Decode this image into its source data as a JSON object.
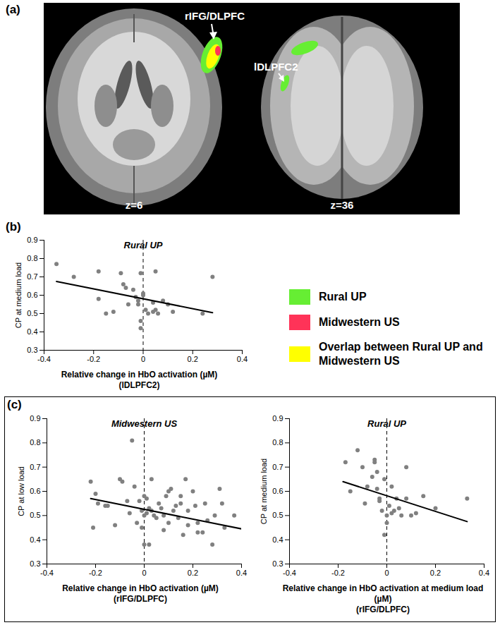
{
  "panel_labels": [
    "(a)",
    "(b)",
    "(c)"
  ],
  "panel_a": {
    "slices": [
      {
        "z_label": "z=6",
        "region_label": "rIFG/DLPFC"
      },
      {
        "z_label": "z=36",
        "region_label": "lDLPFC2"
      }
    ]
  },
  "legend": [
    {
      "name": "Rural UP",
      "color": "#66ee33"
    },
    {
      "name": "Midwestern US",
      "color": "#ff3358"
    },
    {
      "name": "Overlap between Rural UP and Midwestern US",
      "color": "#ffff00"
    }
  ],
  "chart_data": [
    {
      "type": "scatter",
      "title": "Rural UP",
      "xlabel": "Relative change in HbO activation (µM)",
      "xlabel_note": "(lDLPFC2)",
      "ylabel": "CP at medium load",
      "xlim": [
        -0.4,
        0.4
      ],
      "xticks": [
        -0.4,
        -0.2,
        0,
        0.2,
        0.4
      ],
      "ylim": [
        0.3,
        0.9
      ],
      "yticks": [
        0.3,
        0.4,
        0.5,
        0.6,
        0.7,
        0.8,
        0.9
      ],
      "vline": 0,
      "series": [
        {
          "type": "scatter",
          "color": "#808080",
          "marker": "circle",
          "x": [
            -0.35,
            -0.28,
            -0.18,
            -0.18,
            -0.15,
            -0.12,
            -0.09,
            -0.08,
            -0.07,
            -0.06,
            -0.04,
            -0.03,
            -0.02,
            -0.02,
            -0.01,
            -0.01,
            -0.01,
            0.0,
            0.0,
            0.01,
            0.02,
            0.04,
            0.04,
            0.05,
            0.05,
            0.06,
            0.08,
            0.1,
            0.12,
            0.24,
            0.28
          ],
          "values": [
            0.77,
            0.7,
            0.73,
            0.58,
            0.5,
            0.51,
            0.72,
            0.66,
            0.64,
            0.55,
            0.63,
            0.59,
            0.57,
            0.55,
            0.72,
            0.42,
            0.46,
            0.61,
            0.6,
            0.52,
            0.5,
            0.56,
            0.51,
            0.52,
            0.73,
            0.5,
            0.57,
            0.55,
            0.51,
            0.5,
            0.7
          ]
        },
        {
          "type": "line",
          "color": "#000000",
          "line_style": "solid",
          "x": [
            -0.35,
            0.28
          ],
          "values": [
            0.675,
            0.505
          ]
        }
      ]
    },
    {
      "type": "scatter",
      "title": "Midwestern US",
      "xlabel": "Relative change in HbO activation (µM)",
      "xlabel_note": "(rIFG/DLPFC)",
      "ylabel": "CP at low load",
      "xlim": [
        -0.4,
        0.4
      ],
      "xticks": [
        -0.4,
        -0.2,
        0,
        0.2,
        0.4
      ],
      "ylim": [
        0.3,
        0.9
      ],
      "yticks": [
        0.3,
        0.4,
        0.5,
        0.6,
        0.7,
        0.8,
        0.9
      ],
      "vline": 0,
      "series": [
        {
          "type": "scatter",
          "color": "#808080",
          "marker": "circle",
          "x": [
            -0.22,
            -0.21,
            -0.2,
            -0.19,
            -0.16,
            -0.15,
            -0.12,
            -0.1,
            -0.09,
            -0.07,
            -0.06,
            -0.05,
            -0.04,
            -0.03,
            -0.02,
            -0.01,
            -0.01,
            0.0,
            0.0,
            0.0,
            0.01,
            0.01,
            0.02,
            0.02,
            0.03,
            0.03,
            0.04,
            0.05,
            0.06,
            0.07,
            0.08,
            0.08,
            0.09,
            0.1,
            0.1,
            0.11,
            0.12,
            0.13,
            0.14,
            0.15,
            0.15,
            0.16,
            0.17,
            0.18,
            0.18,
            0.2,
            0.21,
            0.22,
            0.22,
            0.24,
            0.25,
            0.26,
            0.28,
            0.29,
            0.31,
            0.32,
            0.33,
            0.37
          ],
          "values": [
            0.64,
            0.45,
            0.59,
            0.55,
            0.54,
            0.54,
            0.46,
            0.65,
            0.64,
            0.56,
            0.51,
            0.81,
            0.62,
            0.47,
            0.56,
            0.52,
            0.45,
            0.58,
            0.5,
            0.38,
            0.57,
            0.51,
            0.53,
            0.38,
            0.65,
            0.52,
            0.5,
            0.49,
            0.55,
            0.53,
            0.5,
            0.44,
            0.58,
            0.6,
            0.47,
            0.61,
            0.52,
            0.54,
            0.49,
            0.58,
            0.55,
            0.42,
            0.65,
            0.52,
            0.46,
            0.6,
            0.54,
            0.47,
            0.43,
            0.43,
            0.55,
            0.48,
            0.38,
            0.5,
            0.61,
            0.55,
            0.45,
            0.5
          ]
        },
        {
          "type": "line",
          "color": "#000000",
          "line_style": "solid",
          "x": [
            -0.22,
            0.4
          ],
          "values": [
            0.57,
            0.445
          ]
        }
      ]
    },
    {
      "type": "scatter",
      "title": "Rural UP",
      "xlabel": "Relative change in HbO activation at medium load (µM)",
      "xlabel_note": "(rIFG/DLPFC)",
      "ylabel": "CP at medium load",
      "xlim": [
        -0.4,
        0.4
      ],
      "xticks": [
        -0.4,
        -0.2,
        0,
        0.2,
        0.4
      ],
      "ylim": [
        0.3,
        0.9
      ],
      "yticks": [
        0.3,
        0.4,
        0.5,
        0.6,
        0.7,
        0.8,
        0.9
      ],
      "vline": 0,
      "series": [
        {
          "type": "scatter",
          "color": "#808080",
          "marker": "circle",
          "x": [
            -0.17,
            -0.15,
            -0.12,
            -0.1,
            -0.09,
            -0.08,
            -0.06,
            -0.05,
            -0.05,
            -0.04,
            -0.04,
            -0.03,
            -0.03,
            -0.02,
            -0.01,
            -0.01,
            0.0,
            0.0,
            0.01,
            0.02,
            0.02,
            0.03,
            0.04,
            0.05,
            0.06,
            0.08,
            0.08,
            0.1,
            0.12,
            0.15,
            0.2,
            0.33
          ],
          "values": [
            0.72,
            0.6,
            0.77,
            0.7,
            0.55,
            0.62,
            0.66,
            0.73,
            0.72,
            0.68,
            0.61,
            0.57,
            0.56,
            0.52,
            0.65,
            0.42,
            0.5,
            0.47,
            0.54,
            0.51,
            0.62,
            0.52,
            0.57,
            0.53,
            0.5,
            0.7,
            0.57,
            0.5,
            0.51,
            0.58,
            0.53,
            0.57
          ]
        },
        {
          "type": "line",
          "color": "#000000",
          "line_style": "solid",
          "x": [
            -0.18,
            0.33
          ],
          "values": [
            0.64,
            0.475
          ]
        }
      ]
    }
  ]
}
